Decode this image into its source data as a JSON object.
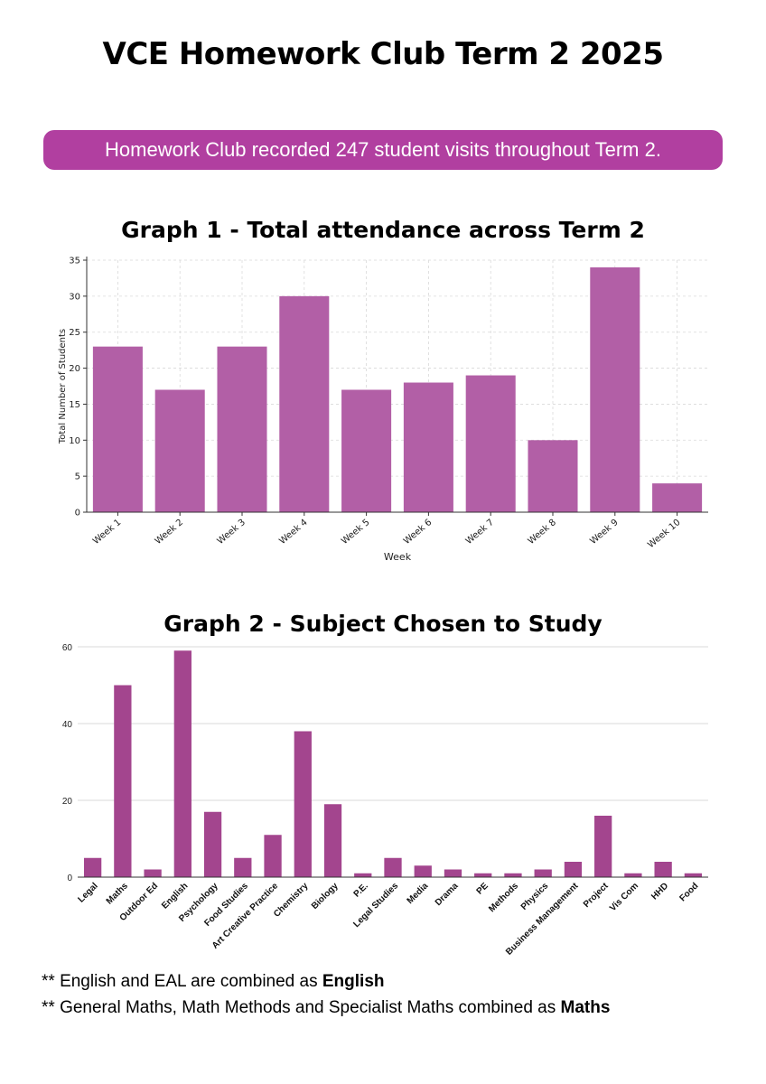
{
  "page": {
    "title": "VCE Homework Club Term 2 2025",
    "banner": "Homework Club recorded 247 student visits throughout Term 2.",
    "notes": [
      {
        "prefix": "** English and EAL are combined as ",
        "bold": "English"
      },
      {
        "prefix": "** General Maths, Math Methods and Specialist Maths combined as ",
        "bold": "Maths"
      }
    ]
  },
  "colors": {
    "banner": "#b13fa0",
    "chart1_bar": "#b25fa6",
    "chart2_bar": "#a3458e",
    "grid": "#d9d9d9"
  },
  "chart_data": [
    {
      "type": "bar",
      "title": "Graph 1 - Total attendance across Term 2",
      "xlabel": "Week",
      "ylabel": "Total Number of Students",
      "categories": [
        "Week 1",
        "Week 2",
        "Week 3",
        "Week 4",
        "Week 5",
        "Week 6",
        "Week 7",
        "Week 8",
        "Week 9",
        "Week 10"
      ],
      "values": [
        23,
        17,
        23,
        30,
        17,
        18,
        19,
        10,
        34,
        4
      ],
      "ylim": [
        0,
        35
      ],
      "yticks": [
        0,
        5,
        10,
        15,
        20,
        25,
        30,
        35
      ],
      "grid": true,
      "legend": "none"
    },
    {
      "type": "bar",
      "title": "Graph 2 - Subject Chosen to Study",
      "xlabel": "",
      "ylabel": "",
      "categories": [
        "Legal",
        "Maths",
        "Outdoor Ed",
        "English",
        "Psychology",
        "Food Studies",
        "Art Creative Practice",
        "Chemistry",
        "Biology",
        "P.E.",
        "Legal Studies",
        "Media",
        "Drama",
        "PE",
        "Methods",
        "Physics",
        "Business Management",
        "Project",
        "Vis Com",
        "HHD",
        "Food"
      ],
      "values": [
        5,
        50,
        2,
        59,
        17,
        5,
        11,
        38,
        19,
        1,
        5,
        3,
        2,
        1,
        1,
        2,
        4,
        16,
        1,
        4,
        1
      ],
      "ylim": [
        0,
        60
      ],
      "yticks": [
        0,
        20,
        40,
        60
      ],
      "grid": true,
      "legend": "none"
    }
  ]
}
